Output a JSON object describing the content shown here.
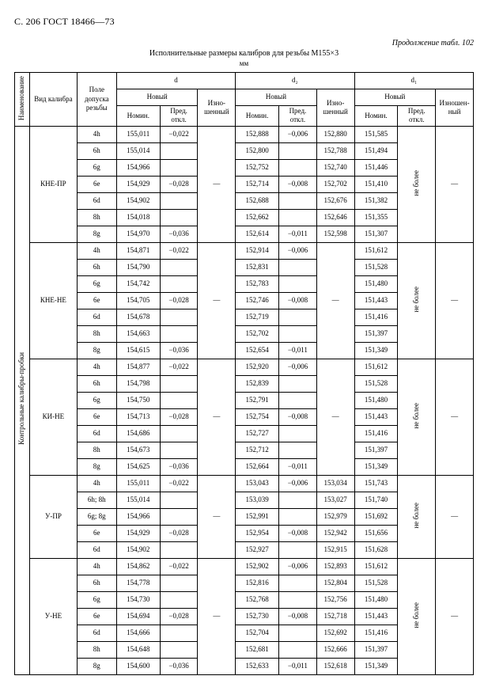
{
  "page_head": "С. 206 ГОСТ 18466—73",
  "continuation": "Продолжение табл. 102",
  "caption": "Исполнительные размеры калибров для резьбы М155×3",
  "unit": "мм",
  "headers": {
    "side": "Наименование",
    "type": "Вид калибра",
    "field": "Поле допуска резьбы",
    "d": "d",
    "d2": "d₂",
    "d1": "d₁",
    "new": "Новый",
    "worn": "Изно-шенный",
    "worn2": "Изношен-ный",
    "nom": "Номин.",
    "dev": "Пред. откл."
  },
  "side_label": "Контрольные калибры-пробки",
  "ne_bolee": "не более",
  "dash": "—",
  "groups": [
    {
      "name": "КНЕ-ПР",
      "rows": [
        {
          "f": "4h",
          "dN": "155,011",
          "dD": "−0,022",
          "d2N": "152,888",
          "d2D": "−0,006",
          "d2W": "152,880",
          "d1N": "151,585"
        },
        {
          "f": "6h",
          "dN": "155,014",
          "dD": "",
          "d2N": "152,800",
          "d2D": "",
          "d2W": "152,788",
          "d1N": "151,494"
        },
        {
          "f": "6g",
          "dN": "154,966",
          "dD": "",
          "d2N": "152,752",
          "d2D": "",
          "d2W": "152,740",
          "d1N": "151,446"
        },
        {
          "f": "6e",
          "dN": "154,929",
          "dD": "−0,028",
          "d2N": "152,714",
          "d2D": "−0,008",
          "d2W": "152,702",
          "d1N": "151,410"
        },
        {
          "f": "6d",
          "dN": "154,902",
          "dD": "",
          "d2N": "152,688",
          "d2D": "",
          "d2W": "152,676",
          "d1N": "151,382"
        },
        {
          "f": "8h",
          "dN": "154,018",
          "dD": "",
          "d2N": "152,662",
          "d2D": "",
          "d2W": "152,646",
          "d1N": "151,355"
        },
        {
          "f": "8g",
          "dN": "154,970",
          "dD": "−0,036",
          "d2N": "152,614",
          "d2D": "−0,011",
          "d2W": "152,598",
          "d1N": "151,307"
        }
      ]
    },
    {
      "name": "КНЕ-НЕ",
      "rows": [
        {
          "f": "4h",
          "dN": "154,871",
          "dD": "−0,022",
          "d2N": "152,914",
          "d2D": "−0,006",
          "d2W": "",
          "d1N": "151,612"
        },
        {
          "f": "6h",
          "dN": "154,790",
          "dD": "",
          "d2N": "152,831",
          "d2D": "",
          "d2W": "",
          "d1N": "151,528"
        },
        {
          "f": "6g",
          "dN": "154,742",
          "dD": "",
          "d2N": "152,783",
          "d2D": "",
          "d2W": "",
          "d1N": "151,480"
        },
        {
          "f": "6e",
          "dN": "154,705",
          "dD": "−0,028",
          "d2N": "152,746",
          "d2D": "−0,008",
          "d2W": "",
          "d1N": "151,443"
        },
        {
          "f": "6d",
          "dN": "154,678",
          "dD": "",
          "d2N": "152,719",
          "d2D": "",
          "d2W": "",
          "d1N": "151,416"
        },
        {
          "f": "8h",
          "dN": "154,663",
          "dD": "",
          "d2N": "152,702",
          "d2D": "",
          "d2W": "",
          "d1N": "151,397"
        },
        {
          "f": "8g",
          "dN": "154,615",
          "dD": "−0,036",
          "d2N": "152,654",
          "d2D": "−0,011",
          "d2W": "",
          "d1N": "151,349"
        }
      ]
    },
    {
      "name": "КИ-НЕ",
      "rows": [
        {
          "f": "4h",
          "dN": "154,877",
          "dD": "−0,022",
          "d2N": "152,920",
          "d2D": "−0,006",
          "d2W": "",
          "d1N": "151,612"
        },
        {
          "f": "6h",
          "dN": "154,798",
          "dD": "",
          "d2N": "152,839",
          "d2D": "",
          "d2W": "",
          "d1N": "151,528"
        },
        {
          "f": "6g",
          "dN": "154,750",
          "dD": "",
          "d2N": "152,791",
          "d2D": "",
          "d2W": "",
          "d1N": "151,480"
        },
        {
          "f": "6e",
          "dN": "154,713",
          "dD": "−0,028",
          "d2N": "152,754",
          "d2D": "−0,008",
          "d2W": "",
          "d1N": "151,443"
        },
        {
          "f": "6d",
          "dN": "154,686",
          "dD": "",
          "d2N": "152,727",
          "d2D": "",
          "d2W": "",
          "d1N": "151,416"
        },
        {
          "f": "8h",
          "dN": "154,673",
          "dD": "",
          "d2N": "152,712",
          "d2D": "",
          "d2W": "",
          "d1N": "151,397"
        },
        {
          "f": "8g",
          "dN": "154,625",
          "dD": "−0,036",
          "d2N": "152,664",
          "d2D": "−0,011",
          "d2W": "",
          "d1N": "151,349"
        }
      ]
    },
    {
      "name": "У-ПР",
      "rows": [
        {
          "f": "4h",
          "dN": "155,011",
          "dD": "−0,022",
          "d2N": "153,043",
          "d2D": "−0,006",
          "d2W": "153,034",
          "d1N": "151,743"
        },
        {
          "f": "6h; 8h",
          "dN": "155,014",
          "dD": "",
          "d2N": "153,039",
          "d2D": "",
          "d2W": "153,027",
          "d1N": "151,740"
        },
        {
          "f": "6g; 8g",
          "dN": "154,966",
          "dD": "",
          "d2N": "152,991",
          "d2D": "",
          "d2W": "152,979",
          "d1N": "151,692"
        },
        {
          "f": "6e",
          "dN": "154,929",
          "dD": "−0,028",
          "d2N": "152,954",
          "d2D": "−0,008",
          "d2W": "152,942",
          "d1N": "151,656"
        },
        {
          "f": "6d",
          "dN": "154,902",
          "dD": "",
          "d2N": "152,927",
          "d2D": "",
          "d2W": "152,915",
          "d1N": "151,628"
        }
      ]
    },
    {
      "name": "У-НЕ",
      "rows": [
        {
          "f": "4h",
          "dN": "154,862",
          "dD": "−0,022",
          "d2N": "152,902",
          "d2D": "−0,006",
          "d2W": "152,893",
          "d1N": "151,612"
        },
        {
          "f": "6h",
          "dN": "154,778",
          "dD": "",
          "d2N": "152,816",
          "d2D": "",
          "d2W": "152,804",
          "d1N": "151,528"
        },
        {
          "f": "6g",
          "dN": "154,730",
          "dD": "",
          "d2N": "152,768",
          "d2D": "",
          "d2W": "152,756",
          "d1N": "151,480"
        },
        {
          "f": "6e",
          "dN": "154,694",
          "dD": "−0,028",
          "d2N": "152,730",
          "d2D": "−0,008",
          "d2W": "152,718",
          "d1N": "151,443"
        },
        {
          "f": "6d",
          "dN": "154,666",
          "dD": "",
          "d2N": "152,704",
          "d2D": "",
          "d2W": "152,692",
          "d1N": "151,416"
        },
        {
          "f": "8h",
          "dN": "154,648",
          "dD": "",
          "d2N": "152,681",
          "d2D": "",
          "d2W": "152,666",
          "d1N": "151,397"
        },
        {
          "f": "8g",
          "dN": "154,600",
          "dD": "−0,036",
          "d2N": "152,633",
          "d2D": "−0,011",
          "d2W": "152,618",
          "d1N": "151,349"
        }
      ]
    }
  ]
}
